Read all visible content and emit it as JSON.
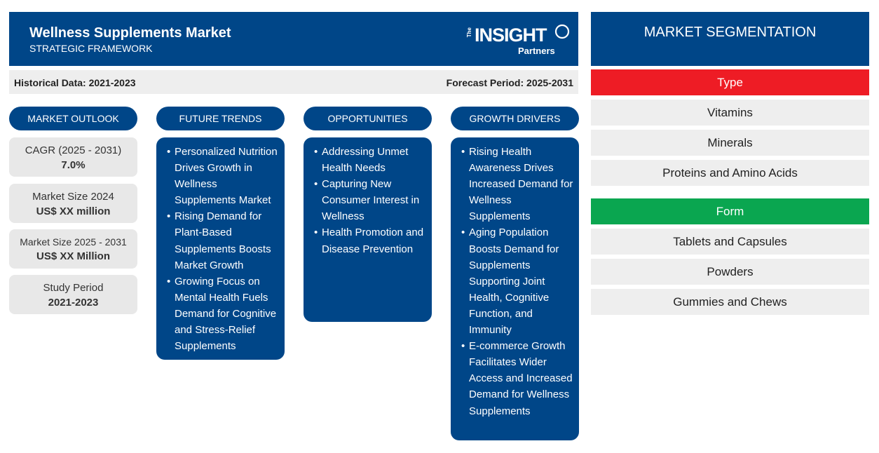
{
  "header": {
    "title": "Wellness Supplements Market",
    "subtitle": "STRATEGIC FRAMEWORK",
    "logo": {
      "the": "The",
      "insight": "INSIGHT",
      "partners": "Partners"
    }
  },
  "periods": {
    "historical": "Historical Data: 2021-2023",
    "forecast": "Forecast Period: 2025-2031"
  },
  "columns": {
    "outlook": "MARKET OUTLOOK",
    "trends": "FUTURE TRENDS",
    "opportunities": "OPPORTUNITIES",
    "drivers": "GROWTH DRIVERS"
  },
  "outlook": [
    {
      "label": "CAGR (2025 - 2031)",
      "value": "7.0%"
    },
    {
      "label": "Market Size 2024",
      "value": "US$ XX million"
    },
    {
      "label": "Market Size 2025 - 2031",
      "value": "US$ XX Million"
    },
    {
      "label": "Study Period",
      "value": "2021-2023"
    }
  ],
  "trends": [
    "Personalized Nutrition Drives Growth in Wellness Supplements Market",
    "Rising Demand for Plant-Based Supplements Boosts Market Growth",
    "Growing Focus on Mental Health Fuels Demand for Cognitive and Stress-Relief Supplements"
  ],
  "opportunities": [
    "Addressing Unmet Health Needs",
    "Capturing New Consumer Interest in Wellness",
    "Health Promotion and Disease Prevention"
  ],
  "drivers": [
    "Rising Health Awareness Drives Increased Demand for Wellness Supplements",
    "Aging Population Boosts Demand for Supplements Supporting Joint Health, Cognitive Function, and Immunity",
    "E-commerce Growth Facilitates Wider Access and Increased Demand for Wellness Supplements"
  ],
  "segmentation": {
    "title": "MARKET SEGMENTATION",
    "type": {
      "label": "Type",
      "color": "#ee1c25",
      "items": [
        "Vitamins",
        "Minerals",
        "Proteins and Amino Acids"
      ]
    },
    "form": {
      "label": "Form",
      "color": "#0aa650",
      "items": [
        "Tablets and Capsules",
        "Powders",
        "Gummies and Chews"
      ]
    }
  },
  "colors": {
    "primary": "#004688",
    "panel_gray": "#eeeeee"
  }
}
